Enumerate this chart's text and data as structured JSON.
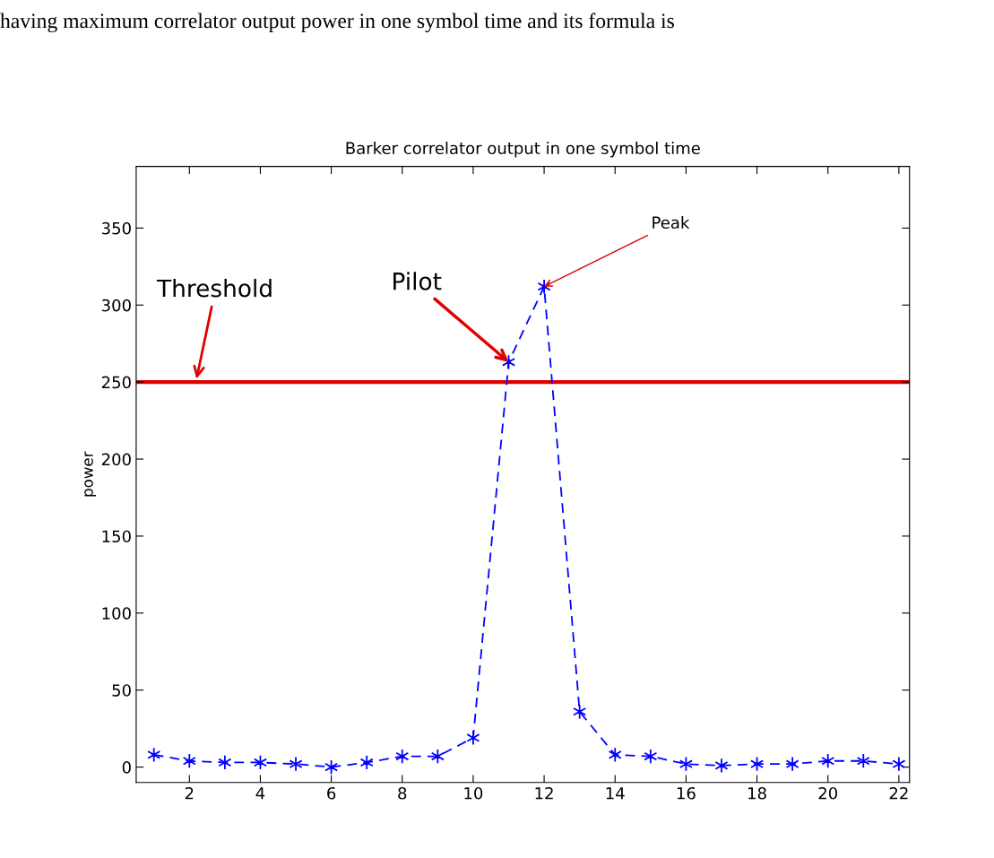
{
  "chart_data": {
    "type": "line",
    "title": "Barker correlator output in one symbol time",
    "ylabel": "power",
    "x": [
      1,
      2,
      3,
      4,
      5,
      6,
      7,
      8,
      9,
      10,
      11,
      12,
      13,
      14,
      15,
      16,
      17,
      18,
      19,
      20,
      21,
      22
    ],
    "series": [
      {
        "color": "#0000ff",
        "values": [
          8,
          4,
          3,
          3,
          2,
          0,
          3,
          7,
          7,
          19,
          263,
          312,
          36,
          8,
          7,
          2,
          1,
          2,
          2,
          4,
          4,
          2
        ]
      }
    ],
    "marker": "cross",
    "line_style": "dashed",
    "xlim": [
      0.5,
      22.3
    ],
    "xticks": [
      2,
      4,
      6,
      8,
      10,
      12,
      14,
      16,
      18,
      20,
      22
    ],
    "ylim": [
      -10,
      390
    ],
    "yticks": [
      0,
      50,
      100,
      150,
      200,
      250,
      300,
      350
    ],
    "ref_lines": [
      {
        "axis": "y",
        "value": 250,
        "color": "#e00000"
      }
    ],
    "annotations": [
      {
        "text": "Threshold",
        "x": 2.2,
        "y": 252
      },
      {
        "text": "Pilot",
        "x": 11,
        "y": 263
      },
      {
        "text": "Peak",
        "x": 12,
        "y": 312
      },
      "having maximum correlator output power in one symbol time and its formula is"
    ],
    "grid": false,
    "legend": false
  }
}
